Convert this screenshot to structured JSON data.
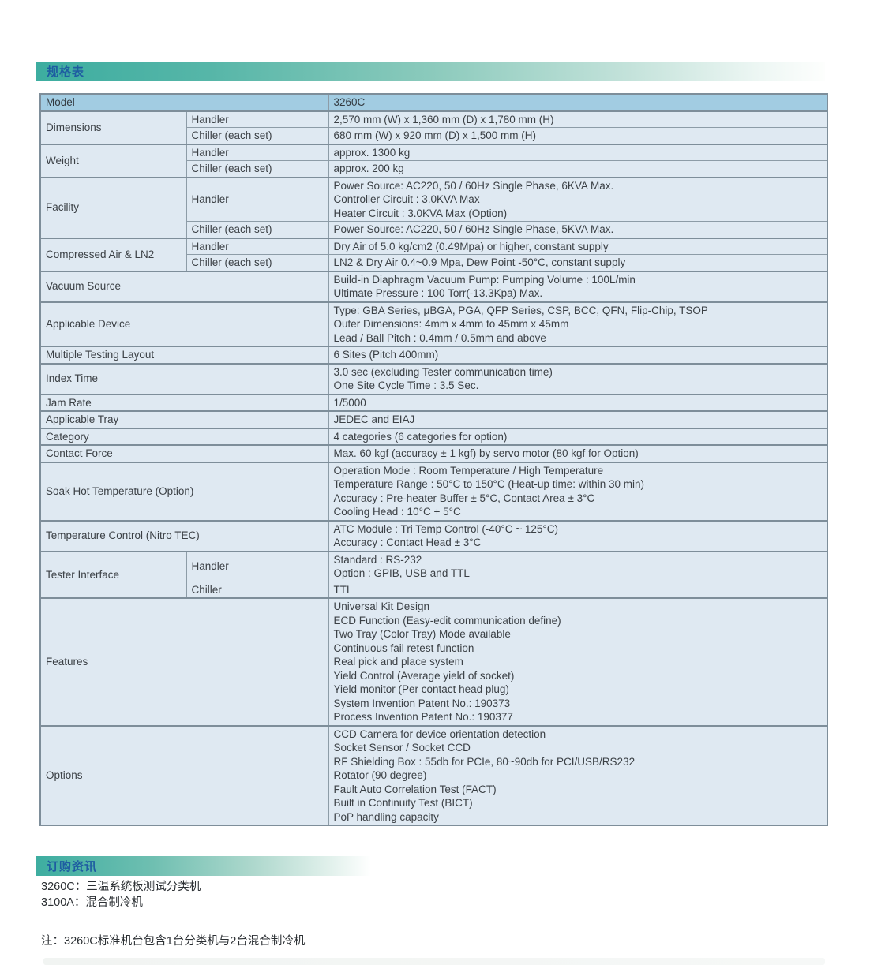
{
  "sections": {
    "spec_title": "规格表",
    "order_title": "订购资讯"
  },
  "colors": {
    "teal_accent": "#3dada0",
    "title_blue": "#1e5da1",
    "table_header_blue": "#a2cce2",
    "table_cell_blue": "#dfe9f2",
    "table_border": "#8d9ca7"
  },
  "spec_table": {
    "header": {
      "label": "Model",
      "value": "3260C"
    },
    "rows": [
      {
        "label": "Dimensions",
        "subs": [
          {
            "sub": "Handler",
            "lines": [
              "2,570 mm (W) x 1,360 mm (D) x 1,780 mm (H)"
            ]
          },
          {
            "sub": "Chiller (each set)",
            "lines": [
              "680 mm (W) x 920 mm (D) x 1,500 mm (H)"
            ]
          }
        ]
      },
      {
        "label": "Weight",
        "subs": [
          {
            "sub": "Handler",
            "lines": [
              "approx. 1300 kg"
            ]
          },
          {
            "sub": "Chiller (each set)",
            "lines": [
              "approx. 200 kg"
            ]
          }
        ]
      },
      {
        "label": "Facility",
        "subs": [
          {
            "sub": "Handler",
            "lines": [
              "Power Source: AC220, 50 / 60Hz Single Phase, 6KVA Max.",
              "Controller Circuit : 3.0KVA Max",
              "Heater Circuit : 3.0KVA Max (Option)"
            ]
          },
          {
            "sub": "Chiller (each set)",
            "lines": [
              "Power Source: AC220, 50 / 60Hz Single Phase, 5KVA Max."
            ]
          }
        ]
      },
      {
        "label": "Compressed Air & LN2",
        "subs": [
          {
            "sub": "Handler",
            "lines": [
              "Dry Air of 5.0 kg/cm2 (0.49Mpa) or higher, constant supply"
            ]
          },
          {
            "sub": "Chiller (each set)",
            "lines": [
              "LN2 & Dry Air 0.4~0.9 Mpa, Dew Point -50°C, constant supply"
            ]
          }
        ]
      },
      {
        "label": "Vacuum Source",
        "lines": [
          "Build-in Diaphragm Vacuum Pump: Pumping Volume : 100L/min",
          "Ultimate Pressure : 100 Torr(-13.3Kpa) Max."
        ]
      },
      {
        "label": "Applicable Device",
        "lines": [
          "Type: GBA Series, μBGA, PGA, QFP Series, CSP, BCC, QFN, Flip-Chip, TSOP",
          "Outer Dimensions: 4mm x 4mm to 45mm x 45mm",
          "Lead / Ball Pitch : 0.4mm / 0.5mm and above"
        ]
      },
      {
        "label": "Multiple Testing Layout",
        "lines": [
          "6 Sites (Pitch 400mm)"
        ]
      },
      {
        "label": "Index Time",
        "lines": [
          "3.0 sec (excluding Tester communication time)",
          "One Site Cycle Time : 3.5 Sec."
        ]
      },
      {
        "label": "Jam Rate",
        "lines": [
          "1/5000"
        ]
      },
      {
        "label": "Applicable Tray",
        "lines": [
          "JEDEC and EIAJ"
        ]
      },
      {
        "label": "Category",
        "lines": [
          "4 categories (6 categories for option)"
        ]
      },
      {
        "label": "Contact Force",
        "lines": [
          "Max. 60 kgf  (accuracy ± 1 kgf) by servo motor (80 kgf for Option)"
        ]
      },
      {
        "label": "Soak Hot Temperature (Option)",
        "lines": [
          "Operation Mode : Room Temperature / High Temperature",
          "Temperature Range : 50°C to 150°C (Heat-up time: within 30 min)",
          "Accuracy : Pre-heater Buffer ± 5°C, Contact Area ± 3°C",
          "Cooling Head : 10°C + 5°C"
        ]
      },
      {
        "label": "Temperature Control (Nitro TEC)",
        "lines": [
          "ATC Module : Tri Temp Control (-40°C ~ 125°C)",
          "Accuracy : Contact Head ± 3°C"
        ]
      },
      {
        "label": "Tester Interface",
        "subs": [
          {
            "sub": "Handler",
            "lines": [
              "Standard : RS-232",
              "Option : GPIB, USB and TTL"
            ]
          },
          {
            "sub": "Chiller",
            "lines": [
              "TTL"
            ]
          }
        ]
      },
      {
        "label": "Features",
        "lines": [
          "Universal Kit Design",
          "ECD Function (Easy-edit communication define)",
          "Two Tray (Color Tray) Mode available",
          "Continuous fail retest function",
          "Real pick and place system",
          "Yield Control (Average yield of socket)",
          "Yield monitor (Per contact head plug)",
          "System Invention Patent No.: 190373",
          "Process Invention Patent No.: 190377"
        ]
      },
      {
        "label": "Options",
        "lines": [
          "CCD Camera for device orientation detection",
          "Socket Sensor / Socket CCD",
          "RF Shielding Box : 55db for PCIe, 80~90db for PCI/USB/RS232",
          "Rotator (90 degree)",
          "Fault Auto Correlation Test (FACT)",
          "Built in Continuity Test (BICT)",
          "PoP handling capacity"
        ]
      }
    ]
  },
  "order_items": [
    "3260C：三温系统板测试分类机",
    "3100A：混合制冷机"
  ],
  "note": "注：3260C标准机台包含1台分类机与2台混合制冷机"
}
